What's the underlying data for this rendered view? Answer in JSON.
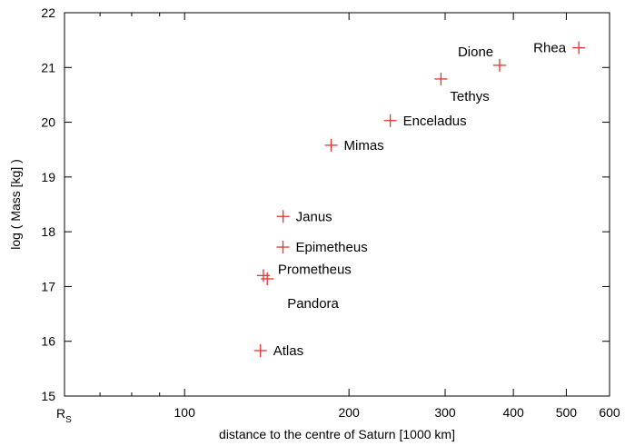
{
  "chart_data": {
    "type": "scatter",
    "xlabel": "distance to the centre of Saturn [1000 km]",
    "ylabel": "log ( Mass [kg] )",
    "x_scale": "log",
    "xlim": [
      60.268,
      600
    ],
    "ylim": [
      15,
      22
    ],
    "x_ticks": [
      100,
      200,
      300,
      400,
      500,
      600
    ],
    "y_ticks": [
      15,
      16,
      17,
      18,
      19,
      20,
      21,
      22
    ],
    "x_origin_label": "R",
    "x_origin_label_sub": "S",
    "grid": false,
    "legend": "none",
    "marker": "plus",
    "marker_color": "#e8322f",
    "points": [
      {
        "name": "Atlas",
        "x": 137.7,
        "y": 15.83,
        "label_pos": "right"
      },
      {
        "name": "Prometheus",
        "x": 139.4,
        "y": 17.2,
        "label_pos": "upper-right"
      },
      {
        "name": "Pandora",
        "x": 141.7,
        "y": 17.14,
        "label_pos": "lower-right"
      },
      {
        "name": "Epimetheus",
        "x": 151.4,
        "y": 17.72,
        "label_pos": "right"
      },
      {
        "name": "Janus",
        "x": 151.5,
        "y": 18.28,
        "label_pos": "right"
      },
      {
        "name": "Mimas",
        "x": 185.5,
        "y": 19.58,
        "label_pos": "right"
      },
      {
        "name": "Enceladus",
        "x": 238.0,
        "y": 20.03,
        "label_pos": "right"
      },
      {
        "name": "Tethys",
        "x": 294.7,
        "y": 20.79,
        "label_pos": "below"
      },
      {
        "name": "Dione",
        "x": 377.4,
        "y": 21.04,
        "label_pos": "above-left"
      },
      {
        "name": "Rhea",
        "x": 527.1,
        "y": 21.36,
        "label_pos": "left"
      }
    ]
  }
}
